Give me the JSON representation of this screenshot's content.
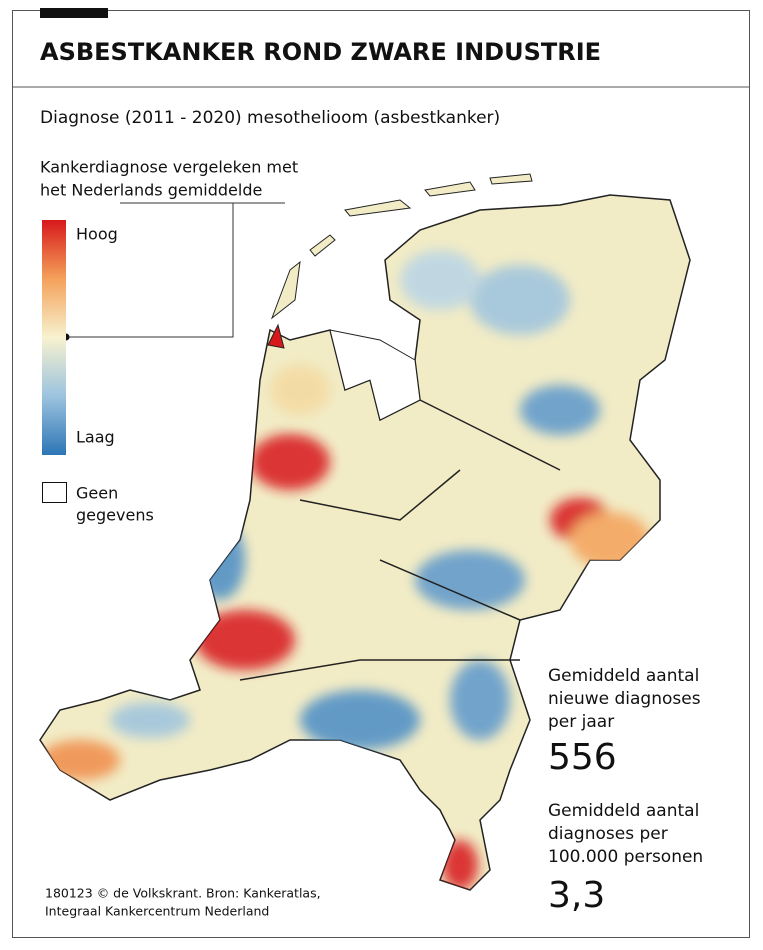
{
  "header": {
    "title": "ASBESTKANKER ROND ZWARE INDUSTRIE"
  },
  "subtitle": "Diagnose (2011 - 2020) mesothelioom (asbestkanker)",
  "legend": {
    "title_lines": [
      "Kankerdiagnose vergeleken met",
      "het Nederlands gemiddelde"
    ],
    "high": "Hoog",
    "low": "Laag",
    "no_data_lines": [
      "Geen",
      "gegevens"
    ]
  },
  "stats": [
    {
      "label_lines": [
        "Gemiddeld aantal",
        "nieuwe diagnoses",
        "per jaar"
      ],
      "value": "556"
    },
    {
      "label_lines": [
        "Gemiddeld aantal",
        "diagnoses per",
        "100.000 personen"
      ],
      "value": "3,3"
    }
  ],
  "source_lines": [
    "180123 © de Volkskrant. Bron: Kankeratlas,",
    "Integraal Kankercentrum Nederland"
  ]
}
